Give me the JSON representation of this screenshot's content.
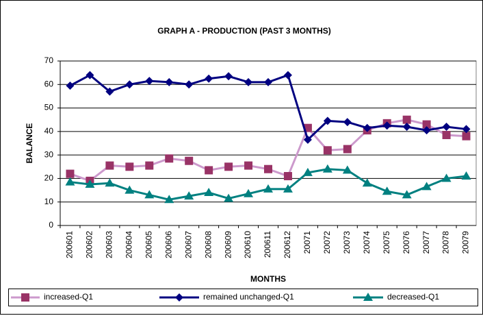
{
  "chart_data": {
    "type": "line",
    "title": "GRAPH A - PRODUCTION (PAST 3 MONTHS)",
    "x_label": "MONTHS",
    "y_label": "BALANCE",
    "categories": [
      "200601",
      "200602",
      "200603",
      "200604",
      "200605",
      "200606",
      "200607",
      "200608",
      "200609",
      "200610",
      "200611",
      "200612",
      "20071",
      "20072",
      "20073",
      "20074",
      "20075",
      "20076",
      "20077",
      "20078",
      "20079"
    ],
    "series": [
      {
        "name": "increased-Q1",
        "color": "#cc99cc",
        "marker_color": "#993366",
        "marker": "square",
        "values": [
          22,
          19,
          25.5,
          25,
          25.5,
          28.5,
          27.5,
          23.5,
          25,
          25.5,
          24,
          21,
          41.5,
          32,
          32.5,
          40.5,
          43.5,
          45,
          43,
          38.5,
          38
        ]
      },
      {
        "name": "remained unchanged-Q1",
        "color": "#000080",
        "marker_color": "#000080",
        "marker": "diamond",
        "values": [
          59.5,
          64,
          57,
          60,
          61.5,
          61,
          60,
          62.5,
          63.5,
          61,
          61,
          64,
          36.5,
          44.5,
          44,
          41.5,
          42.5,
          42,
          40.5,
          42,
          41
        ]
      },
      {
        "name": "decreased-Q1",
        "color": "#008080",
        "marker_color": "#008080",
        "marker": "triangle",
        "values": [
          18.5,
          17.5,
          18,
          15,
          13,
          11,
          12.5,
          14,
          11.5,
          13.5,
          15.5,
          15.5,
          22.5,
          24,
          23.5,
          18,
          14.5,
          13,
          16.5,
          20,
          21
        ]
      }
    ],
    "ylim": [
      0,
      70
    ],
    "yticks": [
      0,
      10,
      20,
      30,
      40,
      50,
      60,
      70
    ],
    "grid": true,
    "legend": "bottom"
  }
}
